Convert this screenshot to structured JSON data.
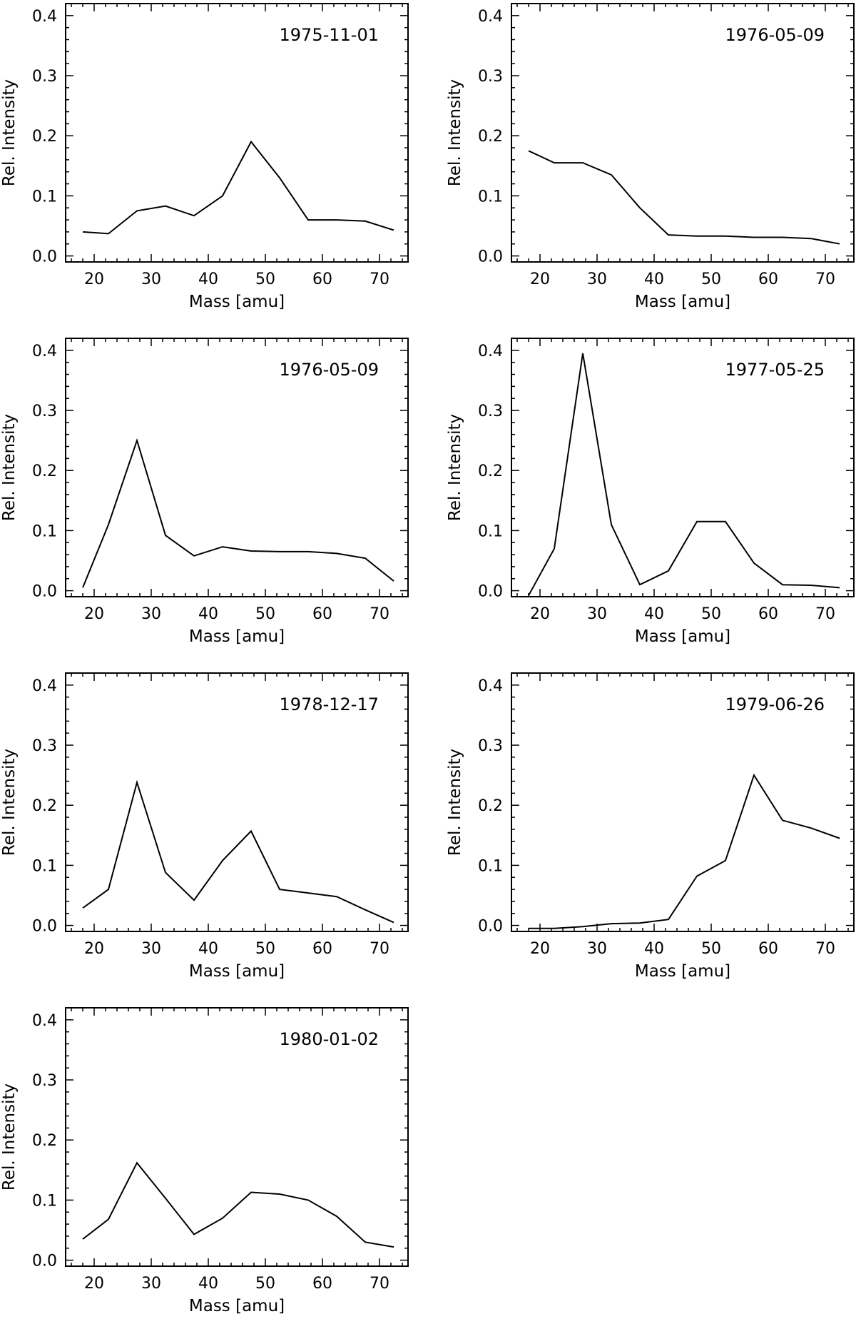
{
  "chart_data": [
    {
      "type": "line",
      "title": "1975-11-01",
      "xlabel": "Mass [amu]",
      "ylabel": "Rel. Intensity",
      "xlim": [
        15,
        75
      ],
      "ylim": [
        -0.01,
        0.42
      ],
      "xticks": [
        "20",
        "30",
        "40",
        "50",
        "60",
        "70"
      ],
      "yticks": [
        "0.0",
        "0.1",
        "0.2",
        "0.3",
        "0.4"
      ],
      "series": [
        {
          "name": "1975-11-01",
          "x": [
            18,
            22.5,
            27.5,
            32.5,
            37.5,
            42.5,
            47.5,
            52.5,
            57.5,
            62.5,
            67.5,
            72.5
          ],
          "values": [
            0.04,
            0.037,
            0.075,
            0.083,
            0.067,
            0.1,
            0.19,
            0.13,
            0.06,
            0.06,
            0.058,
            0.043
          ]
        }
      ]
    },
    {
      "type": "line",
      "title": "1976-05-09",
      "xlabel": "Mass [amu]",
      "ylabel": "Rel. Intensity",
      "xlim": [
        15,
        75
      ],
      "ylim": [
        -0.01,
        0.42
      ],
      "xticks": [
        "20",
        "30",
        "40",
        "50",
        "60",
        "70"
      ],
      "yticks": [
        "0.0",
        "0.1",
        "0.2",
        "0.3",
        "0.4"
      ],
      "series": [
        {
          "name": "1976-05-09",
          "x": [
            18,
            22.5,
            27.5,
            32.5,
            37.5,
            42.5,
            47.5,
            52.5,
            57.5,
            62.5,
            67.5,
            72.5
          ],
          "values": [
            0.175,
            0.155,
            0.155,
            0.135,
            0.08,
            0.035,
            0.033,
            0.033,
            0.031,
            0.031,
            0.029,
            0.02
          ]
        }
      ]
    },
    {
      "type": "line",
      "title": "1976-05-09",
      "xlabel": "Mass [amu]",
      "ylabel": "Rel. Intensity",
      "xlim": [
        15,
        75
      ],
      "ylim": [
        -0.01,
        0.42
      ],
      "xticks": [
        "20",
        "30",
        "40",
        "50",
        "60",
        "70"
      ],
      "yticks": [
        "0.0",
        "0.1",
        "0.2",
        "0.3",
        "0.4"
      ],
      "series": [
        {
          "name": "1976-05-09",
          "x": [
            18,
            22.5,
            27.5,
            32.5,
            37.5,
            42.5,
            47.5,
            52.5,
            57.5,
            62.5,
            67.5,
            72.5
          ],
          "values": [
            0.005,
            0.11,
            0.25,
            0.092,
            0.058,
            0.073,
            0.066,
            0.065,
            0.065,
            0.062,
            0.054,
            0.016
          ]
        }
      ]
    },
    {
      "type": "line",
      "title": "1977-05-25",
      "xlabel": "Mass [amu]",
      "ylabel": "Rel. Intensity",
      "xlim": [
        15,
        75
      ],
      "ylim": [
        -0.01,
        0.42
      ],
      "xticks": [
        "20",
        "30",
        "40",
        "50",
        "60",
        "70"
      ],
      "yticks": [
        "0.0",
        "0.1",
        "0.2",
        "0.3",
        "0.4"
      ],
      "series": [
        {
          "name": "1977-05-25",
          "x": [
            18,
            22.5,
            27.5,
            32.5,
            37.5,
            42.5,
            47.5,
            52.5,
            57.5,
            62.5,
            67.5,
            72.5
          ],
          "values": [
            -0.008,
            0.07,
            0.395,
            0.11,
            0.01,
            0.033,
            0.115,
            0.115,
            0.046,
            0.01,
            0.009,
            0.005
          ]
        }
      ]
    },
    {
      "type": "line",
      "title": "1978-12-17",
      "xlabel": "Mass [amu]",
      "ylabel": "Rel. Intensity",
      "xlim": [
        15,
        75
      ],
      "ylim": [
        -0.01,
        0.42
      ],
      "xticks": [
        "20",
        "30",
        "40",
        "50",
        "60",
        "70"
      ],
      "yticks": [
        "0.0",
        "0.1",
        "0.2",
        "0.3",
        "0.4"
      ],
      "series": [
        {
          "name": "1978-12-17",
          "x": [
            18,
            22.5,
            27.5,
            32.5,
            37.5,
            42.5,
            47.5,
            52.5,
            57.5,
            62.5,
            67.5,
            72.5
          ],
          "values": [
            0.029,
            0.06,
            0.238,
            0.088,
            0.042,
            0.108,
            0.157,
            0.06,
            0.054,
            0.048,
            0.026,
            0.005
          ]
        }
      ]
    },
    {
      "type": "line",
      "title": "1979-06-26",
      "xlabel": "Mass [amu]",
      "ylabel": "Rel. Intensity",
      "xlim": [
        15,
        75
      ],
      "ylim": [
        -0.01,
        0.42
      ],
      "xticks": [
        "20",
        "30",
        "40",
        "50",
        "60",
        "70"
      ],
      "yticks": [
        "0.0",
        "0.1",
        "0.2",
        "0.3",
        "0.4"
      ],
      "series": [
        {
          "name": "1979-06-26",
          "x": [
            18,
            22.5,
            27.5,
            32.5,
            37.5,
            42.5,
            47.5,
            52.5,
            57.5,
            62.5,
            67.5,
            72.5
          ],
          "values": [
            -0.005,
            -0.005,
            -0.002,
            0.003,
            0.004,
            0.01,
            0.082,
            0.108,
            0.25,
            0.175,
            0.162,
            0.145
          ]
        }
      ]
    },
    {
      "type": "line",
      "title": "1980-01-02",
      "xlabel": "Mass [amu]",
      "ylabel": "Rel. Intensity",
      "xlim": [
        15,
        75
      ],
      "ylim": [
        -0.01,
        0.42
      ],
      "xticks": [
        "20",
        "30",
        "40",
        "50",
        "60",
        "70"
      ],
      "yticks": [
        "0.0",
        "0.1",
        "0.2",
        "0.3",
        "0.4"
      ],
      "series": [
        {
          "name": "1980-01-02",
          "x": [
            18,
            22.5,
            27.5,
            32.5,
            37.5,
            42.5,
            47.5,
            52.5,
            57.5,
            62.5,
            67.5,
            72.5
          ],
          "values": [
            0.035,
            0.068,
            0.162,
            0.103,
            0.043,
            0.07,
            0.113,
            0.11,
            0.1,
            0.073,
            0.03,
            0.022
          ]
        }
      ]
    }
  ]
}
